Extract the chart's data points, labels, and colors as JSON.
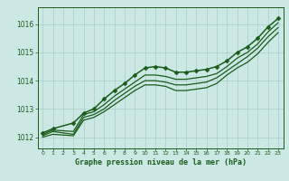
{
  "title": "Graphe pression niveau de la mer (hPa)",
  "background_color": "#cce8e4",
  "grid_color": "#aaccca",
  "line_color": "#1a5c1a",
  "xlim": [
    -0.5,
    23.5
  ],
  "ylim": [
    1011.6,
    1016.6
  ],
  "yticks": [
    1012,
    1013,
    1014,
    1015,
    1016
  ],
  "xticks": [
    0,
    1,
    2,
    3,
    4,
    5,
    6,
    7,
    8,
    9,
    10,
    11,
    12,
    13,
    14,
    15,
    16,
    17,
    18,
    19,
    20,
    21,
    22,
    23
  ],
  "series": [
    {
      "x": [
        0,
        1,
        3,
        4,
        5,
        6,
        7,
        8,
        9,
        10,
        11,
        12,
        13,
        14,
        15,
        16,
        17,
        18,
        19,
        20,
        21,
        22,
        23
      ],
      "y": [
        1012.15,
        1012.3,
        1012.5,
        1012.85,
        1013.0,
        1013.35,
        1013.65,
        1013.9,
        1014.2,
        1014.45,
        1014.5,
        1014.45,
        1014.3,
        1014.3,
        1014.35,
        1014.4,
        1014.5,
        1014.7,
        1015.0,
        1015.2,
        1015.5,
        1015.9,
        1016.2
      ],
      "marker": "D",
      "markersize": 2.5,
      "linewidth": 1.1
    },
    {
      "x": [
        0,
        1,
        3,
        4,
        5,
        6,
        7,
        8,
        9,
        10,
        11,
        12,
        13,
        14,
        15,
        16,
        17,
        18,
        19,
        20,
        21,
        22,
        23
      ],
      "y": [
        1012.1,
        1012.25,
        1012.2,
        1012.8,
        1012.9,
        1013.15,
        1013.45,
        1013.7,
        1013.95,
        1014.2,
        1014.2,
        1014.15,
        1014.05,
        1014.05,
        1014.1,
        1014.15,
        1014.25,
        1014.5,
        1014.8,
        1015.0,
        1015.3,
        1015.72,
        1016.05
      ],
      "marker": null,
      "linewidth": 0.9
    },
    {
      "x": [
        0,
        1,
        3,
        4,
        5,
        6,
        7,
        8,
        9,
        10,
        11,
        12,
        13,
        14,
        15,
        16,
        17,
        18,
        19,
        20,
        21,
        22,
        23
      ],
      "y": [
        1012.05,
        1012.2,
        1012.1,
        1012.7,
        1012.8,
        1013.0,
        1013.3,
        1013.55,
        1013.8,
        1014.0,
        1014.0,
        1013.95,
        1013.85,
        1013.85,
        1013.9,
        1013.95,
        1014.1,
        1014.35,
        1014.6,
        1014.85,
        1015.15,
        1015.55,
        1015.88
      ],
      "marker": null,
      "linewidth": 0.9
    },
    {
      "x": [
        0,
        1,
        3,
        4,
        5,
        6,
        7,
        8,
        9,
        10,
        11,
        12,
        13,
        14,
        15,
        16,
        17,
        18,
        19,
        20,
        21,
        22,
        23
      ],
      "y": [
        1012.0,
        1012.1,
        1012.05,
        1012.6,
        1012.7,
        1012.9,
        1013.15,
        1013.4,
        1013.65,
        1013.85,
        1013.85,
        1013.8,
        1013.65,
        1013.65,
        1013.7,
        1013.75,
        1013.9,
        1014.2,
        1014.45,
        1014.65,
        1014.95,
        1015.35,
        1015.7
      ],
      "marker": null,
      "linewidth": 0.9
    }
  ]
}
